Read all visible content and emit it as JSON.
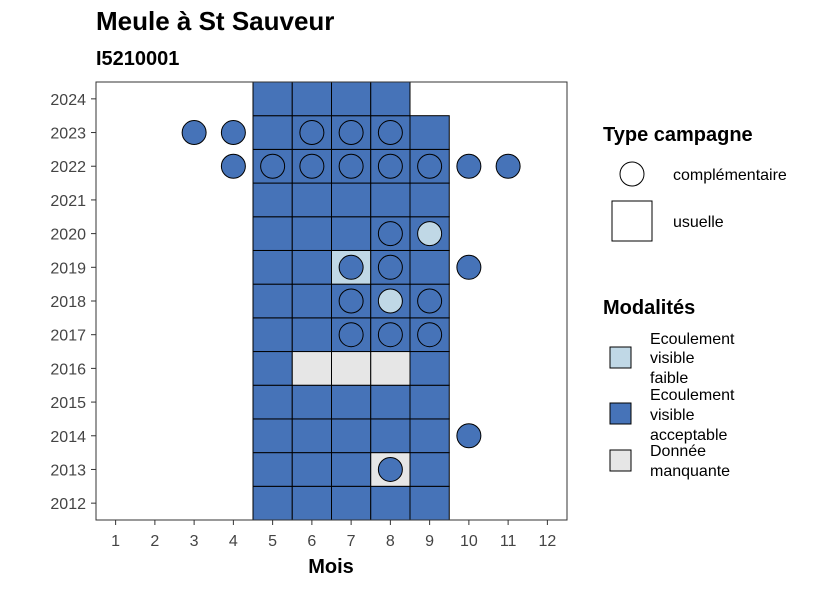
{
  "chart_data": {
    "type": "heatmap",
    "title": "Meule à St Sauveur",
    "subtitle": "I5210001",
    "xlabel": "Mois",
    "ylabel": "",
    "x_ticks": [
      1,
      2,
      3,
      4,
      5,
      6,
      7,
      8,
      9,
      10,
      11,
      12
    ],
    "y_ticks": [
      2012,
      2013,
      2014,
      2015,
      2016,
      2017,
      2018,
      2019,
      2020,
      2021,
      2022,
      2023,
      2024
    ],
    "xlim": [
      0.5,
      12.5
    ],
    "ylim": [
      2011.5,
      2024.5
    ],
    "colors": {
      "faible": "#c0d8e6",
      "acceptable": "#4673b8",
      "manquante": "#e6e6e6"
    },
    "legend_campagne": {
      "title": "Type campagne",
      "items": [
        {
          "key": "complementaire",
          "label": "complémentaire"
        },
        {
          "key": "usuelle",
          "label": "usuelle"
        }
      ]
    },
    "legend_modalites": {
      "title": "Modalités",
      "items": [
        {
          "key": "faible",
          "lines": [
            "Ecoulement",
            "visible",
            "faible"
          ]
        },
        {
          "key": "acceptable",
          "lines": [
            "Ecoulement",
            "visible",
            "acceptable"
          ]
        },
        {
          "key": "manquante",
          "lines": [
            "Donnée",
            "manquante"
          ]
        }
      ]
    },
    "usuelle": [
      {
        "year": 2012,
        "month": 5,
        "m": "acceptable"
      },
      {
        "year": 2012,
        "month": 6,
        "m": "acceptable"
      },
      {
        "year": 2012,
        "month": 7,
        "m": "acceptable"
      },
      {
        "year": 2012,
        "month": 8,
        "m": "acceptable"
      },
      {
        "year": 2012,
        "month": 9,
        "m": "acceptable"
      },
      {
        "year": 2013,
        "month": 5,
        "m": "acceptable"
      },
      {
        "year": 2013,
        "month": 6,
        "m": "acceptable"
      },
      {
        "year": 2013,
        "month": 7,
        "m": "acceptable"
      },
      {
        "year": 2013,
        "month": 8,
        "m": "manquante"
      },
      {
        "year": 2013,
        "month": 9,
        "m": "acceptable"
      },
      {
        "year": 2014,
        "month": 5,
        "m": "acceptable"
      },
      {
        "year": 2014,
        "month": 6,
        "m": "acceptable"
      },
      {
        "year": 2014,
        "month": 7,
        "m": "acceptable"
      },
      {
        "year": 2014,
        "month": 8,
        "m": "acceptable"
      },
      {
        "year": 2014,
        "month": 9,
        "m": "acceptable"
      },
      {
        "year": 2015,
        "month": 5,
        "m": "acceptable"
      },
      {
        "year": 2015,
        "month": 6,
        "m": "acceptable"
      },
      {
        "year": 2015,
        "month": 7,
        "m": "acceptable"
      },
      {
        "year": 2015,
        "month": 8,
        "m": "acceptable"
      },
      {
        "year": 2015,
        "month": 9,
        "m": "acceptable"
      },
      {
        "year": 2016,
        "month": 5,
        "m": "acceptable"
      },
      {
        "year": 2016,
        "month": 6,
        "m": "manquante"
      },
      {
        "year": 2016,
        "month": 7,
        "m": "manquante"
      },
      {
        "year": 2016,
        "month": 8,
        "m": "manquante"
      },
      {
        "year": 2016,
        "month": 9,
        "m": "acceptable"
      },
      {
        "year": 2017,
        "month": 5,
        "m": "acceptable"
      },
      {
        "year": 2017,
        "month": 6,
        "m": "acceptable"
      },
      {
        "year": 2017,
        "month": 7,
        "m": "acceptable"
      },
      {
        "year": 2017,
        "month": 8,
        "m": "acceptable"
      },
      {
        "year": 2017,
        "month": 9,
        "m": "acceptable"
      },
      {
        "year": 2018,
        "month": 5,
        "m": "acceptable"
      },
      {
        "year": 2018,
        "month": 6,
        "m": "acceptable"
      },
      {
        "year": 2018,
        "month": 7,
        "m": "acceptable"
      },
      {
        "year": 2018,
        "month": 8,
        "m": "acceptable"
      },
      {
        "year": 2018,
        "month": 9,
        "m": "acceptable"
      },
      {
        "year": 2019,
        "month": 5,
        "m": "acceptable"
      },
      {
        "year": 2019,
        "month": 6,
        "m": "acceptable"
      },
      {
        "year": 2019,
        "month": 7,
        "m": "faible"
      },
      {
        "year": 2019,
        "month": 8,
        "m": "acceptable"
      },
      {
        "year": 2019,
        "month": 9,
        "m": "acceptable"
      },
      {
        "year": 2020,
        "month": 5,
        "m": "acceptable"
      },
      {
        "year": 2020,
        "month": 6,
        "m": "acceptable"
      },
      {
        "year": 2020,
        "month": 7,
        "m": "acceptable"
      },
      {
        "year": 2020,
        "month": 8,
        "m": "acceptable"
      },
      {
        "year": 2020,
        "month": 9,
        "m": "acceptable"
      },
      {
        "year": 2021,
        "month": 5,
        "m": "acceptable"
      },
      {
        "year": 2021,
        "month": 6,
        "m": "acceptable"
      },
      {
        "year": 2021,
        "month": 7,
        "m": "acceptable"
      },
      {
        "year": 2021,
        "month": 8,
        "m": "acceptable"
      },
      {
        "year": 2021,
        "month": 9,
        "m": "acceptable"
      },
      {
        "year": 2022,
        "month": 5,
        "m": "acceptable"
      },
      {
        "year": 2022,
        "month": 6,
        "m": "acceptable"
      },
      {
        "year": 2022,
        "month": 7,
        "m": "acceptable"
      },
      {
        "year": 2022,
        "month": 8,
        "m": "acceptable"
      },
      {
        "year": 2022,
        "month": 9,
        "m": "acceptable"
      },
      {
        "year": 2023,
        "month": 5,
        "m": "acceptable"
      },
      {
        "year": 2023,
        "month": 6,
        "m": "acceptable"
      },
      {
        "year": 2023,
        "month": 7,
        "m": "acceptable"
      },
      {
        "year": 2023,
        "month": 8,
        "m": "acceptable"
      },
      {
        "year": 2023,
        "month": 9,
        "m": "acceptable"
      },
      {
        "year": 2024,
        "month": 5,
        "m": "acceptable"
      },
      {
        "year": 2024,
        "month": 6,
        "m": "acceptable"
      },
      {
        "year": 2024,
        "month": 7,
        "m": "acceptable"
      },
      {
        "year": 2024,
        "month": 8,
        "m": "acceptable"
      }
    ],
    "complementaire": [
      {
        "year": 2013,
        "month": 8,
        "m": "acceptable"
      },
      {
        "year": 2014,
        "month": 10,
        "m": "acceptable"
      },
      {
        "year": 2017,
        "month": 7,
        "m": "acceptable"
      },
      {
        "year": 2017,
        "month": 8,
        "m": "acceptable"
      },
      {
        "year": 2017,
        "month": 9,
        "m": "acceptable"
      },
      {
        "year": 2018,
        "month": 7,
        "m": "acceptable"
      },
      {
        "year": 2018,
        "month": 8,
        "m": "faible"
      },
      {
        "year": 2018,
        "month": 9,
        "m": "acceptable"
      },
      {
        "year": 2019,
        "month": 7,
        "m": "acceptable"
      },
      {
        "year": 2019,
        "month": 8,
        "m": "acceptable"
      },
      {
        "year": 2019,
        "month": 10,
        "m": "acceptable"
      },
      {
        "year": 2020,
        "month": 8,
        "m": "acceptable"
      },
      {
        "year": 2020,
        "month": 9,
        "m": "faible"
      },
      {
        "year": 2022,
        "month": 4,
        "m": "acceptable"
      },
      {
        "year": 2022,
        "month": 5,
        "m": "acceptable"
      },
      {
        "year": 2022,
        "month": 6,
        "m": "acceptable"
      },
      {
        "year": 2022,
        "month": 7,
        "m": "acceptable"
      },
      {
        "year": 2022,
        "month": 8,
        "m": "acceptable"
      },
      {
        "year": 2022,
        "month": 9,
        "m": "acceptable"
      },
      {
        "year": 2022,
        "month": 10,
        "m": "acceptable"
      },
      {
        "year": 2022,
        "month": 11,
        "m": "acceptable"
      },
      {
        "year": 2023,
        "month": 3,
        "m": "acceptable"
      },
      {
        "year": 2023,
        "month": 4,
        "m": "acceptable"
      },
      {
        "year": 2023,
        "month": 6,
        "m": "acceptable"
      },
      {
        "year": 2023,
        "month": 7,
        "m": "acceptable"
      },
      {
        "year": 2023,
        "month": 8,
        "m": "acceptable"
      }
    ]
  }
}
